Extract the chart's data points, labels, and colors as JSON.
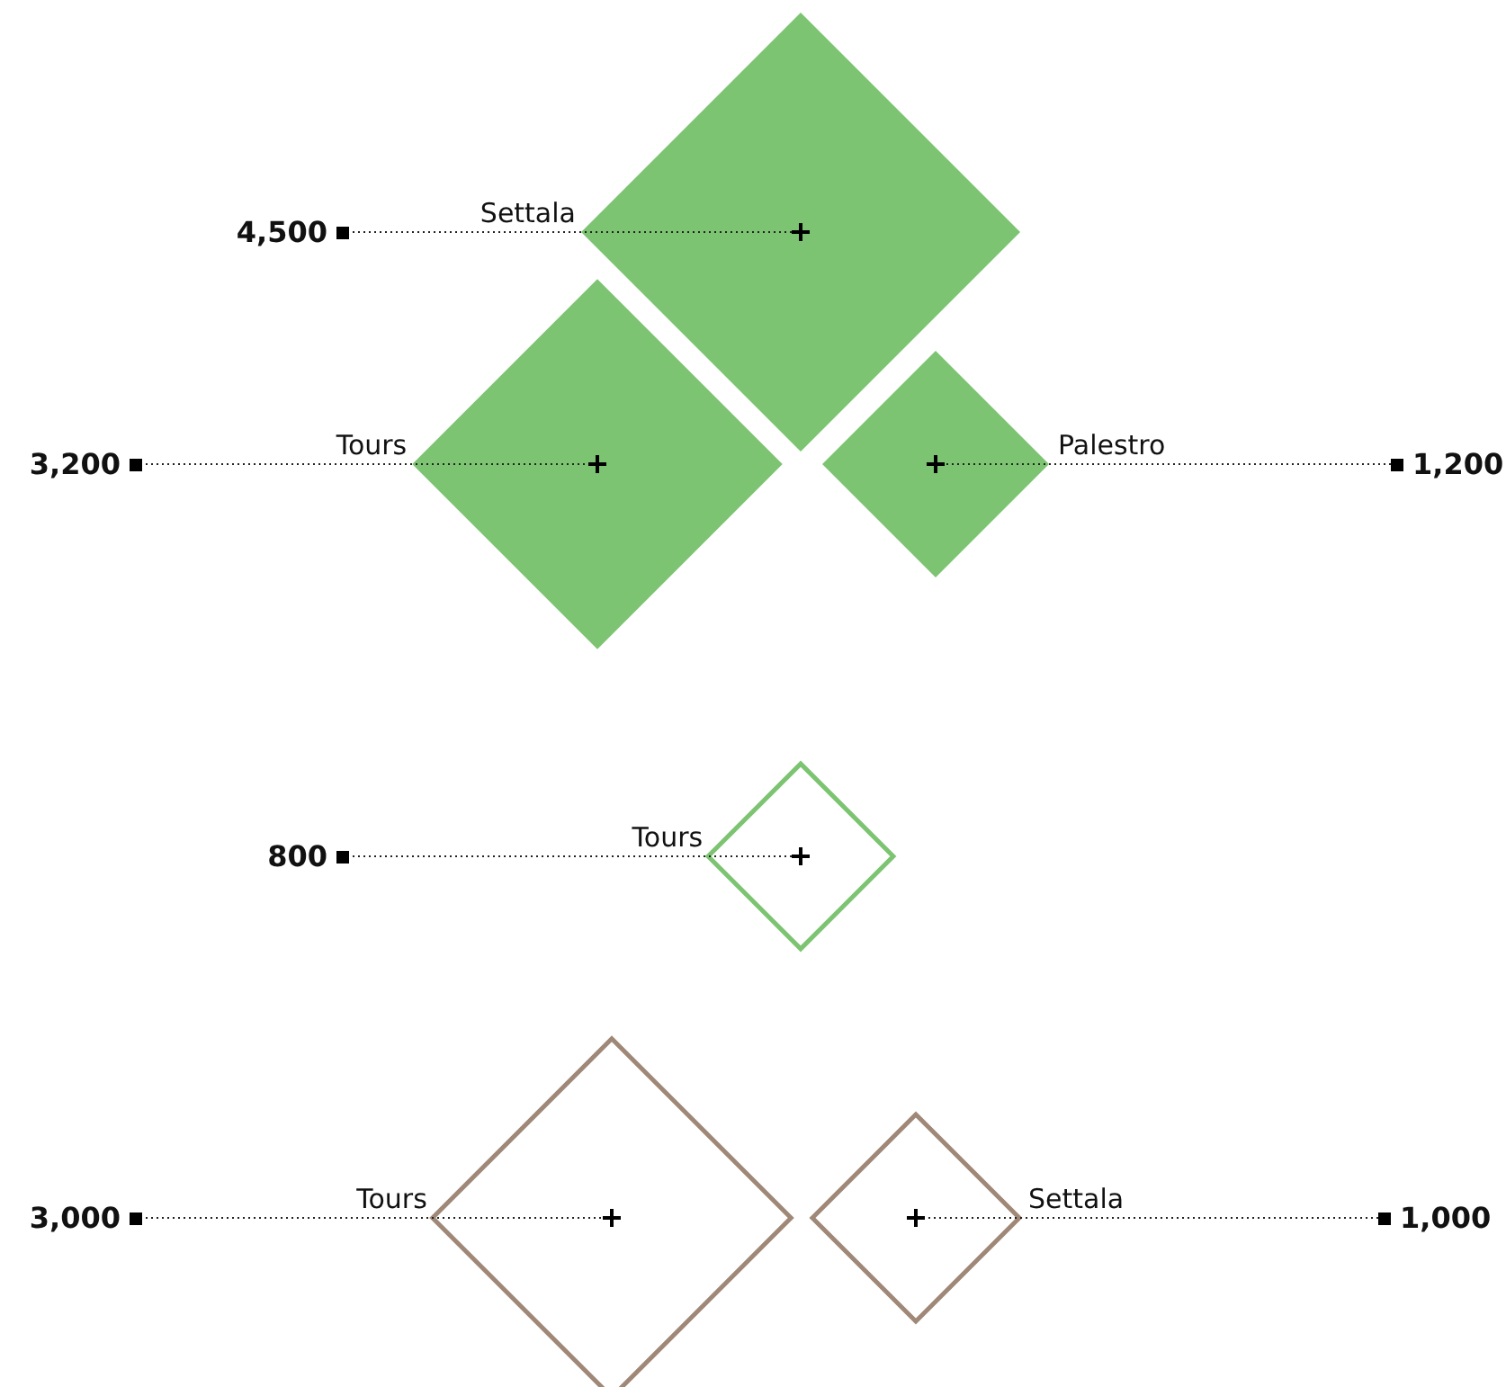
{
  "chart_data": [
    {
      "type": "other",
      "categories": [
        "Settala",
        "Tours",
        "Palestro"
      ],
      "values": [
        4500,
        3200,
        1200
      ],
      "value_labels": [
        "4,500",
        "3,200",
        "1,200"
      ],
      "color": "#7dc472"
    },
    {
      "type": "other",
      "categories": [
        "Tours"
      ],
      "values": [
        800
      ],
      "value_labels": [
        "800"
      ],
      "color": "#7dc472"
    },
    {
      "type": "other",
      "categories": [
        "Tours",
        "Settala"
      ],
      "values": [
        3000,
        1000
      ],
      "value_labels": [
        "3,000",
        "1,000"
      ],
      "color": "#a08878"
    }
  ]
}
